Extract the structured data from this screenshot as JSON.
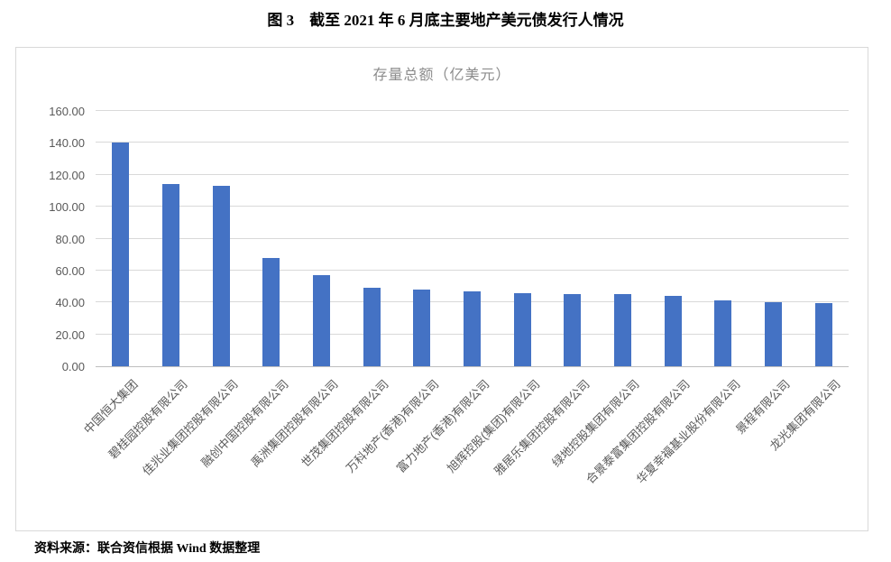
{
  "page": {
    "title": "图 3　截至 2021 年 6 月底主要地产美元债发行人情况",
    "source": "资料来源：联合资信根据 Wind 数据整理"
  },
  "chart_data": {
    "type": "bar",
    "title": "存量总额（亿美元）",
    "categories": [
      "中国恒大集团",
      "碧桂园控股有限公司",
      "佳兆业集团控股有限公司",
      "融创中国控股有限公司",
      "禹洲集团控股有限公司",
      "世茂集团控股有限公司",
      "万科地产(香港)有限公司",
      "富力地产(香港)有限公司",
      "旭辉控股(集团)有限公司",
      "雅居乐集团控股有限公司",
      "绿地控股集团有限公司",
      "合景泰富集团控股有限公司",
      "华夏幸福基业股份有限公司",
      "景程有限公司",
      "龙光集团有限公司"
    ],
    "values": [
      140,
      114,
      113,
      68,
      57,
      49,
      48,
      47,
      46,
      45,
      45,
      44,
      41,
      40,
      39.5
    ],
    "xlabel": "",
    "ylabel": "",
    "ylim": [
      0,
      160
    ],
    "ytick_step": 20,
    "ytick_labels": [
      "0.00",
      "20.00",
      "40.00",
      "60.00",
      "80.00",
      "100.00",
      "120.00",
      "140.00",
      "160.00"
    ],
    "grid": true,
    "legend": false,
    "bar_color": "#4472c4",
    "gridline_color": "#d9d9d9",
    "axis_line_color": "#bfbfbf",
    "tick_label_color": "#595959",
    "title_color": "#8c8c8c"
  }
}
